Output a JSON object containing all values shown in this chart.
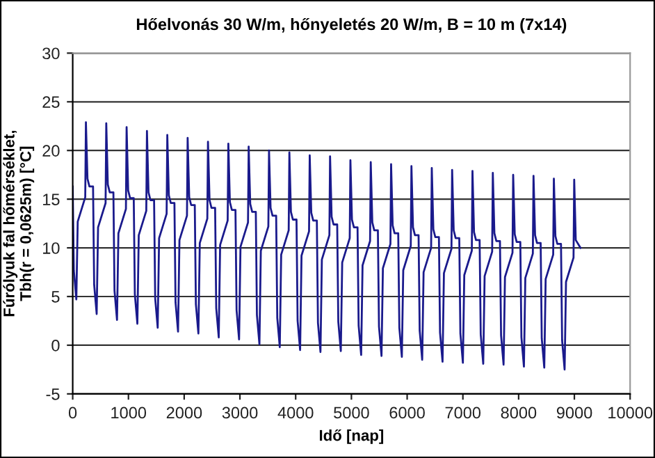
{
  "chart_data": {
    "type": "line",
    "title": "Hőelvonás 30 W/m, hőnyeletés 20 W/m, B = 10 m (7x14)",
    "xlabel": "Idő [nap]",
    "ylabel": "Fúrólyuk fal hőmérséklet,\nTbh(r = 0,0625m) [°C]",
    "xlim": [
      0,
      10000
    ],
    "xticks": [
      0,
      1000,
      2000,
      3000,
      4000,
      5000,
      6000,
      7000,
      8000,
      9000,
      10000
    ],
    "ylim": [
      -5,
      30
    ],
    "yticks": [
      -5,
      0,
      5,
      10,
      15,
      20,
      25,
      30
    ],
    "grid": "y",
    "marker": "none",
    "line_style": "solid",
    "series": [
      {
        "color": "#1a1a8c",
        "x": [
          0,
          20,
          65,
          90,
          225,
          237,
          265,
          300,
          365,
          385,
          430,
          455,
          590,
          602,
          630,
          665,
          730,
          750,
          795,
          820,
          955,
          967,
          995,
          1030,
          1095,
          1115,
          1160,
          1185,
          1320,
          1332,
          1360,
          1395,
          1460,
          1480,
          1525,
          1550,
          1685,
          1697,
          1725,
          1760,
          1825,
          1845,
          1890,
          1915,
          2050,
          2062,
          2090,
          2125,
          2190,
          2210,
          2255,
          2280,
          2415,
          2427,
          2455,
          2490,
          2555,
          2575,
          2620,
          2645,
          2780,
          2792,
          2820,
          2855,
          2920,
          2940,
          2985,
          3010,
          3145,
          3157,
          3185,
          3220,
          3285,
          3305,
          3350,
          3375,
          3510,
          3522,
          3550,
          3585,
          3650,
          3670,
          3715,
          3740,
          3875,
          3887,
          3915,
          3950,
          4015,
          4035,
          4080,
          4105,
          4240,
          4252,
          4280,
          4315,
          4380,
          4400,
          4445,
          4470,
          4605,
          4617,
          4645,
          4680,
          4745,
          4765,
          4810,
          4835,
          4970,
          4982,
          5010,
          5045,
          5110,
          5130,
          5175,
          5200,
          5335,
          5347,
          5375,
          5410,
          5475,
          5495,
          5540,
          5565,
          5700,
          5712,
          5740,
          5775,
          5840,
          5860,
          5905,
          5930,
          6065,
          6077,
          6105,
          6140,
          6205,
          6225,
          6270,
          6295,
          6430,
          6442,
          6470,
          6505,
          6570,
          6590,
          6635,
          6660,
          6795,
          6807,
          6835,
          6870,
          6935,
          6955,
          7000,
          7025,
          7160,
          7172,
          7200,
          7235,
          7300,
          7320,
          7365,
          7390,
          7525,
          7537,
          7565,
          7600,
          7665,
          7685,
          7730,
          7755,
          7890,
          7902,
          7930,
          7965,
          8030,
          8050,
          8095,
          8120,
          8255,
          8267,
          8295,
          8330,
          8395,
          8415,
          8460,
          8485,
          8620,
          8632,
          8660,
          8695,
          8760,
          8780,
          8825,
          8850,
          8985,
          8997,
          9025,
          9110
        ],
        "values": [
          16.3,
          7.7,
          4.7,
          12.7,
          15.2,
          22.9,
          17.1,
          16.3,
          16.3,
          6.2,
          3.2,
          12.1,
          14.6,
          22.8,
          16.5,
          15.7,
          15.7,
          5.6,
          2.6,
          11.5,
          14.0,
          22.4,
          15.9,
          15.1,
          15.1,
          5.2,
          2.2,
          11.3,
          13.8,
          22.0,
          15.7,
          14.9,
          14.9,
          4.8,
          1.8,
          11.0,
          13.5,
          21.6,
          15.4,
          14.6,
          14.6,
          4.4,
          1.4,
          10.8,
          13.3,
          21.3,
          15.2,
          14.4,
          14.4,
          4.2,
          1.2,
          10.5,
          13.0,
          20.9,
          14.9,
          14.1,
          14.1,
          3.8,
          0.8,
          10.3,
          12.8,
          20.7,
          14.7,
          13.9,
          13.9,
          3.6,
          0.6,
          10.1,
          12.6,
          20.4,
          14.5,
          13.7,
          13.7,
          3.1,
          0.1,
          9.7,
          12.2,
          20.0,
          14.1,
          13.3,
          13.3,
          2.8,
          -0.2,
          9.3,
          11.8,
          19.8,
          13.7,
          12.9,
          12.9,
          2.5,
          -0.5,
          9.2,
          11.7,
          19.5,
          13.6,
          12.8,
          12.8,
          2.3,
          -0.7,
          8.8,
          11.3,
          19.4,
          13.2,
          12.4,
          12.4,
          2.4,
          -0.6,
          8.5,
          11.0,
          19.0,
          12.9,
          12.1,
          12.1,
          2.0,
          -1.0,
          8.2,
          10.7,
          18.8,
          12.6,
          11.8,
          11.8,
          1.9,
          -1.1,
          7.9,
          10.4,
          18.6,
          12.3,
          11.5,
          11.5,
          1.8,
          -1.2,
          7.7,
          10.2,
          18.4,
          12.1,
          11.3,
          11.3,
          1.5,
          -1.5,
          7.5,
          10.0,
          18.2,
          11.9,
          11.1,
          11.1,
          1.3,
          -1.7,
          7.4,
          9.9,
          18.0,
          11.8,
          11.0,
          11.0,
          1.2,
          -1.8,
          7.2,
          9.7,
          17.9,
          11.6,
          10.8,
          10.8,
          1.1,
          -1.9,
          7.1,
          9.6,
          17.7,
          11.5,
          10.7,
          10.7,
          1.0,
          -2.0,
          7.0,
          9.5,
          17.5,
          11.4,
          10.6,
          10.6,
          0.8,
          -2.2,
          6.9,
          9.4,
          17.4,
          11.3,
          10.5,
          10.5,
          0.7,
          -2.3,
          6.8,
          9.3,
          17.1,
          11.2,
          10.4,
          10.4,
          0.5,
          -2.5,
          6.5,
          9.0,
          17.0,
          10.8,
          10.0
        ]
      }
    ]
  }
}
